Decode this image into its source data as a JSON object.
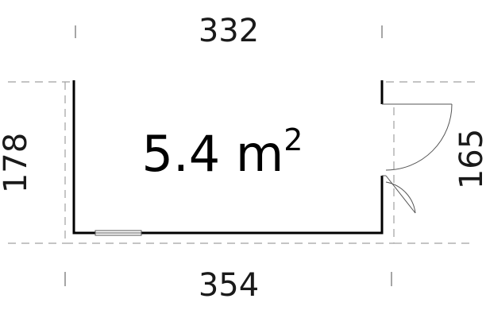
{
  "floor_plan": {
    "area_value": "5.4 m",
    "area_exponent": "2",
    "dimensions": {
      "top": "332",
      "bottom": "354",
      "left": "178",
      "right": "165"
    }
  }
}
